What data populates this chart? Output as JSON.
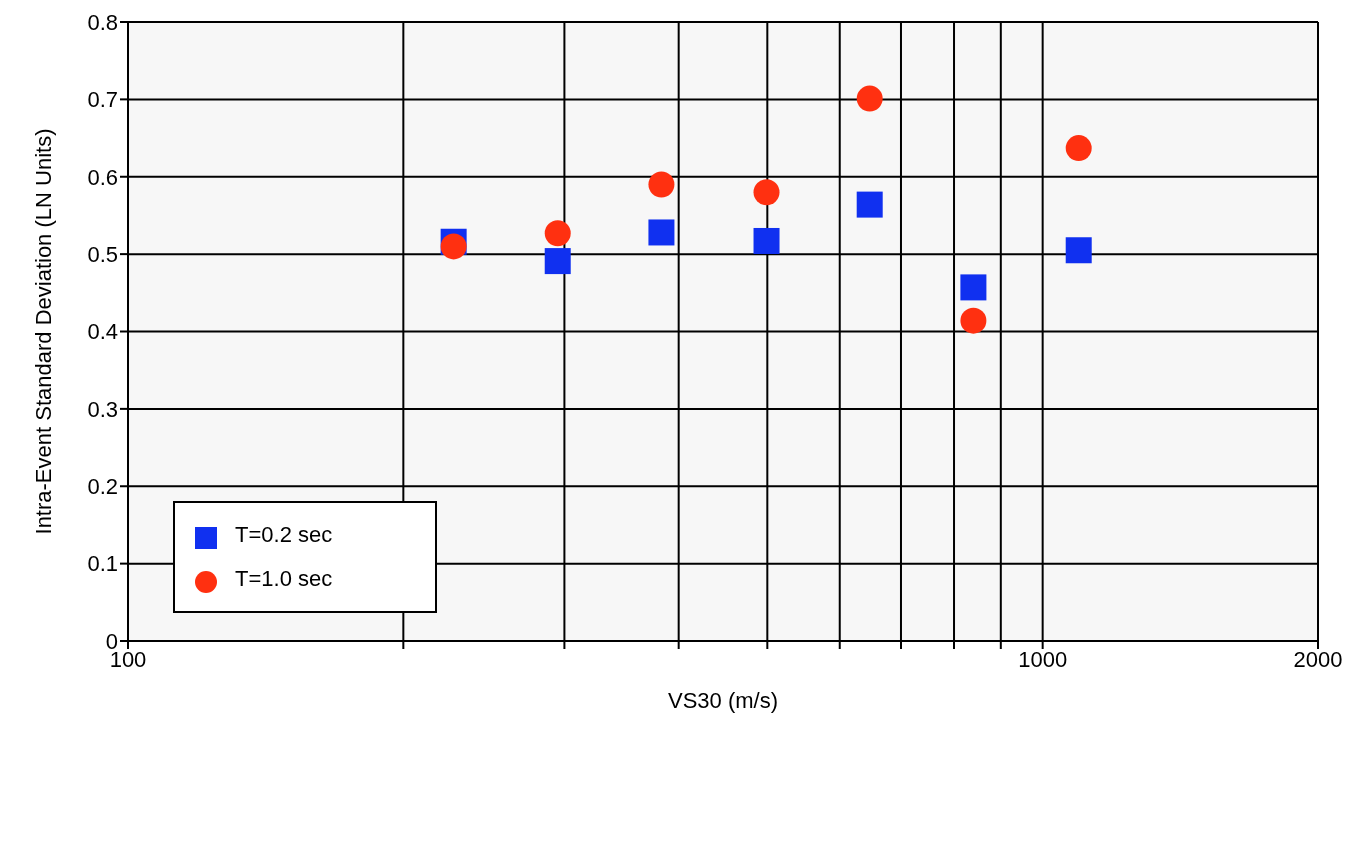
{
  "chart_data": {
    "type": "scatter",
    "xlabel": "VS30 (m/s)",
    "ylabel": "Intra-Event Standard Deviation (LN Units)",
    "log": "x",
    "xlim": [
      100,
      2000
    ],
    "xticks": [
      100,
      {
        "value": 200,
        "label": null
      },
      {
        "value": 300,
        "label": null
      },
      {
        "value": 400,
        "label": null
      },
      {
        "value": 500,
        "label": null
      },
      {
        "value": 600,
        "label": null
      },
      {
        "value": 700,
        "label": null
      },
      {
        "value": 800,
        "label": null
      },
      {
        "value": 900,
        "label": null
      },
      1000,
      2000
    ],
    "ylim": [
      0,
      0.8
    ],
    "yticks": [
      0,
      0.1,
      0.2,
      0.3,
      0.4,
      0.5,
      0.6,
      0.7,
      0.8
    ],
    "grid": true,
    "legend": "bottom left",
    "series": [
      {
        "name": "T=0.2 sec",
        "color": "#1030f0",
        "marker": "square",
        "x": [
          227,
          295,
          383,
          499,
          647,
          840,
          1095
        ],
        "values": [
          0.516,
          0.491,
          0.528,
          0.517,
          0.564,
          0.457,
          0.505
        ]
      },
      {
        "name": "T=1.0 sec",
        "color": "#ff3010",
        "marker": "circle",
        "x": [
          227,
          295,
          383,
          499,
          647,
          840,
          1095
        ],
        "values": [
          0.51,
          0.527,
          0.59,
          0.58,
          0.701,
          0.414,
          0.637
        ]
      }
    ]
  }
}
